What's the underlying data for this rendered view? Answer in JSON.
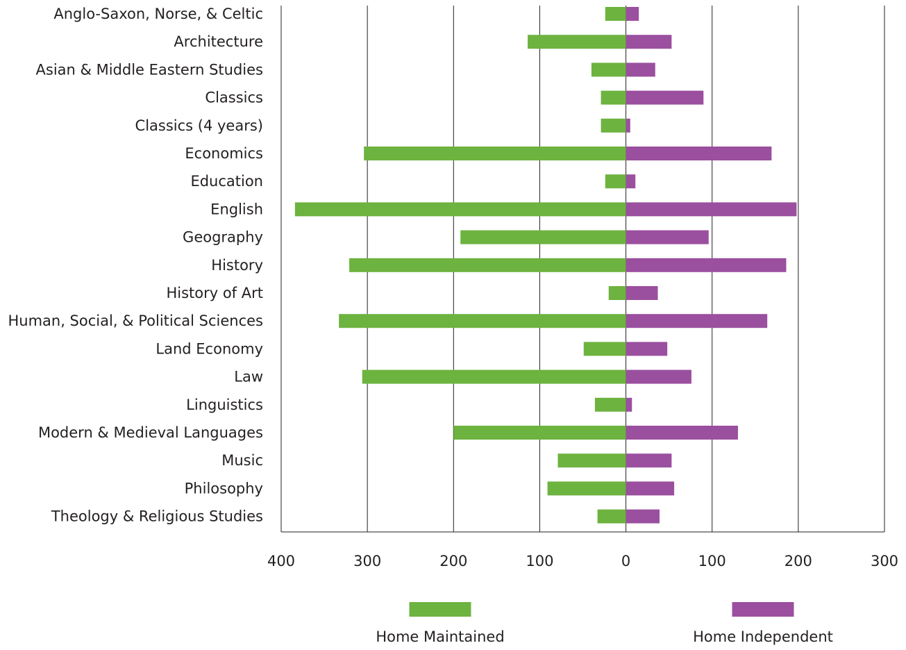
{
  "chart_data": {
    "type": "bar",
    "orientation": "horizontal-diverging",
    "title": "",
    "xlabel": "",
    "ylabel": "",
    "xlim": [
      -400,
      300
    ],
    "x_ticks": [
      -400,
      -300,
      -200,
      -100,
      0,
      100,
      200,
      300
    ],
    "x_tick_labels": [
      "400",
      "300",
      "200",
      "100",
      "0",
      "100",
      "200",
      "300"
    ],
    "grid": true,
    "legend_position": "bottom",
    "categories": [
      "Anglo-Saxon, Norse, & Celtic",
      "Architecture",
      "Asian & Middle Eastern Studies",
      "Classics",
      "Classics (4 years)",
      "Economics",
      "Education",
      "English",
      "Geography",
      "History",
      "History of Art",
      "Human, Social, & Political Sciences",
      "Land Economy",
      "Law",
      "Linguistics",
      "Modern & Medieval Languages",
      "Music",
      "Philosophy",
      "Theology & Religious Studies"
    ],
    "series": [
      {
        "name": "Home Maintained",
        "color": "#6db33f",
        "direction": "left",
        "values": [
          24,
          114,
          40,
          29,
          29,
          304,
          24,
          384,
          192,
          321,
          20,
          333,
          49,
          306,
          36,
          200,
          79,
          91,
          33
        ]
      },
      {
        "name": "Home Independent",
        "color": "#9b4f9f",
        "direction": "right",
        "values": [
          15,
          53,
          34,
          90,
          5,
          169,
          11,
          198,
          96,
          186,
          37,
          164,
          48,
          76,
          7,
          130,
          53,
          56,
          39
        ]
      }
    ]
  }
}
